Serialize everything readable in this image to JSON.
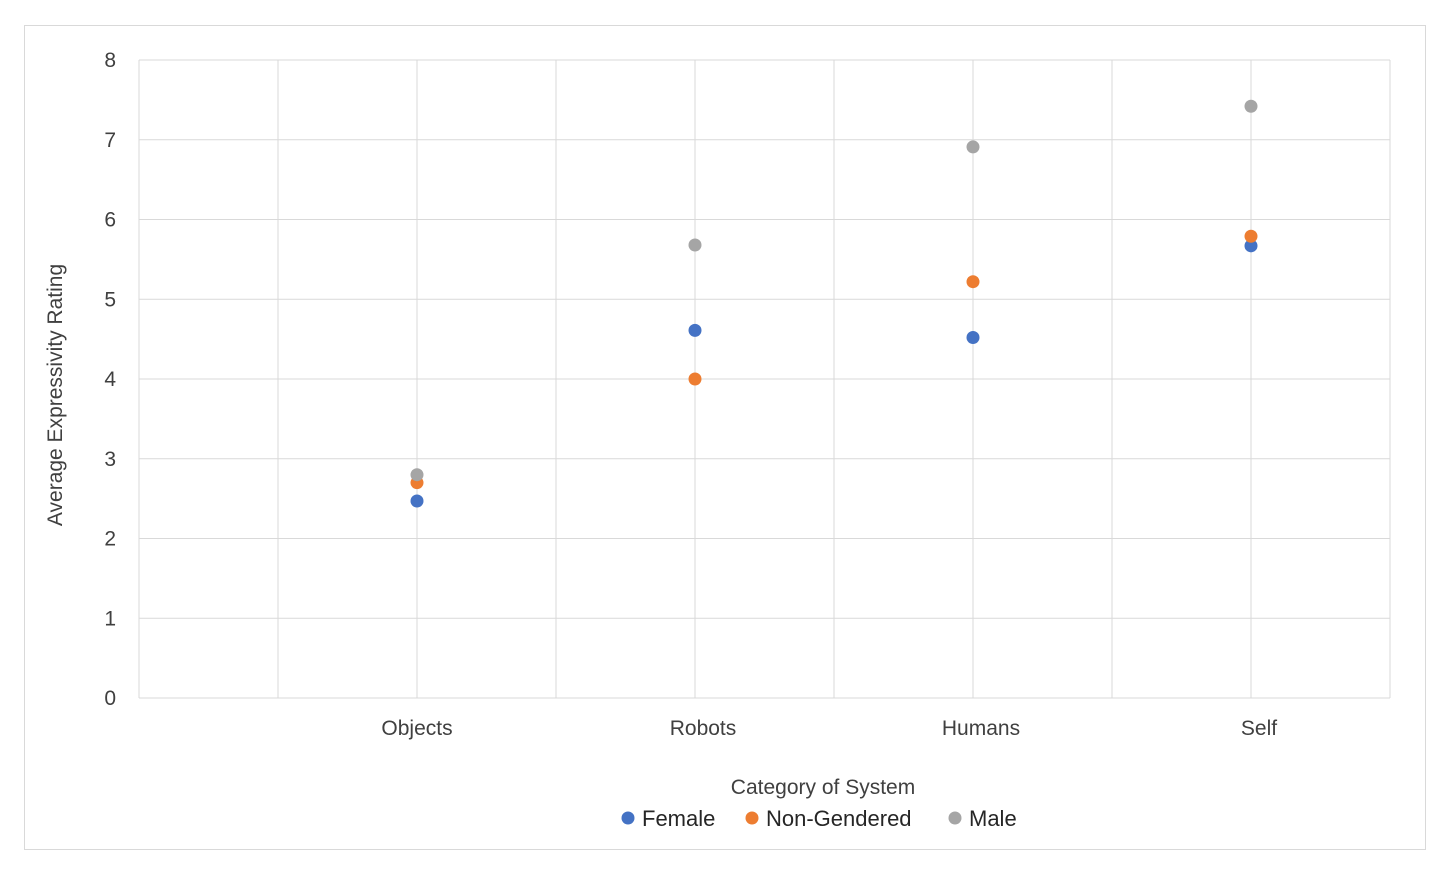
{
  "chart_data": {
    "type": "scatter",
    "title": "",
    "xlabel": "Category of System",
    "ylabel": "Average Expressivity Rating",
    "categories": [
      "Objects",
      "Robots",
      "Humans",
      "Self"
    ],
    "ylim": [
      0,
      8
    ],
    "yticks": [
      0,
      1,
      2,
      3,
      4,
      5,
      6,
      7,
      8
    ],
    "grid": true,
    "legend": "bottom",
    "series": [
      {
        "name": "Female",
        "color": "#4472c4",
        "values": [
          2.47,
          4.61,
          4.52,
          5.67
        ]
      },
      {
        "name": "Non-Gendered",
        "color": "#ed7d31",
        "values": [
          2.7,
          4.0,
          5.22,
          5.79
        ]
      },
      {
        "name": "Male",
        "color": "#a5a5a5",
        "values": [
          2.8,
          5.68,
          6.91,
          7.42
        ]
      }
    ]
  }
}
